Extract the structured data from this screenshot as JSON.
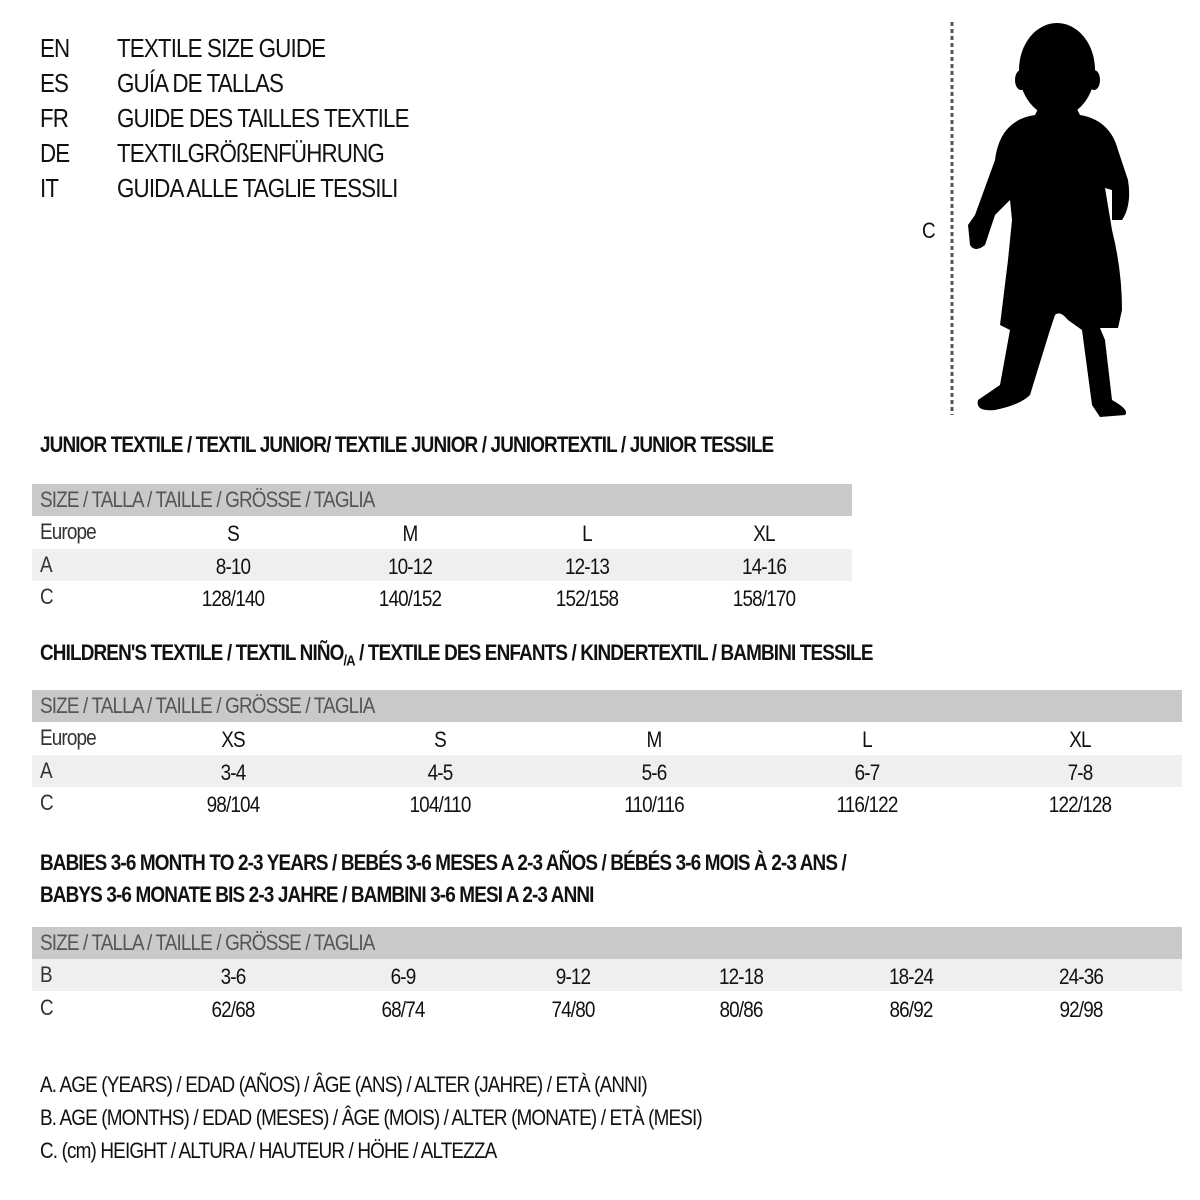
{
  "languages": [
    {
      "code": "EN",
      "title": "TEXTILE SIZE GUIDE"
    },
    {
      "code": "ES",
      "title": "GUÍA DE TALLAS"
    },
    {
      "code": "FR",
      "title": "GUIDE DES TAILLES TEXTILE"
    },
    {
      "code": "DE",
      "title": "TEXTILGRÖßENFÜHRUNG"
    },
    {
      "code": "IT",
      "title": "GUIDA ALLE TAGLIE TESSILI"
    }
  ],
  "figure": {
    "height_label": "C",
    "icon": "child-silhouette"
  },
  "junior": {
    "title": "JUNIOR TEXTILE / TEXTIL JUNIOR/ TEXTILE JUNIOR / JUNIORTEXTIL / JUNIOR TESSILE",
    "header": "SIZE / TALLA / TAILLE / GRÖSSE / TAGLIA",
    "rows": [
      {
        "label": "Europe",
        "values": [
          "S",
          "M",
          "L",
          "XL"
        ]
      },
      {
        "label": "A",
        "values": [
          "8-10",
          "10-12",
          "12-13",
          "14-16"
        ]
      },
      {
        "label": "C",
        "values": [
          "128/140",
          "140/152",
          "152/158",
          "158/170"
        ]
      }
    ]
  },
  "children": {
    "title_main": "CHILDREN'S TEXTILE / TEXTIL NIÑO",
    "title_sub": "/A",
    "title_rest": " / TEXTILE DES ENFANTS / KINDERTEXTIL / BAMBINI TESSILE",
    "header": "SIZE / TALLA / TAILLE / GRÖSSE / TAGLIA",
    "rows": [
      {
        "label": "Europe",
        "values": [
          "XS",
          "S",
          "M",
          "L",
          "XL"
        ]
      },
      {
        "label": "A",
        "values": [
          "3-4",
          "4-5",
          "5-6",
          "6-7",
          "7-8"
        ]
      },
      {
        "label": "C",
        "values": [
          "98/104",
          "104/110",
          "110/116",
          "116/122",
          "122/128"
        ]
      }
    ]
  },
  "babies": {
    "title_line1": "BABIES 3-6 MONTH TO 2-3 YEARS / BEBÉS 3-6 MESES A 2-3 AÑOS / BÉBÉS 3-6 MOIS À 2-3 ANS /",
    "title_line2": "BABYS 3-6 MONATE BIS 2-3 JAHRE / BAMBINI 3-6 MESI A 2-3 ANNI",
    "header": "SIZE / TALLA / TAILLE / GRÖSSE / TAGLIA",
    "rows": [
      {
        "label": "B",
        "values": [
          "3-6",
          "6-9",
          "9-12",
          "12-18",
          "18-24",
          "24-36"
        ]
      },
      {
        "label": "C",
        "values": [
          "62/68",
          "68/74",
          "74/80",
          "80/86",
          "86/92",
          "92/98"
        ]
      }
    ]
  },
  "legend": [
    "A. AGE (YEARS) / EDAD (AÑOS) / ÂGE (ANS) / ALTER (JAHRE) / ETÀ (ANNI)",
    "B. AGE (MONTHS) / EDAD (MESES) / ÂGE (MOIS) / ALTER (MONATE) / ETÀ (MESI)",
    "C. (cm) HEIGHT / ALTURA / HAUTEUR / HÖHE / ALTEZZA"
  ],
  "colors": {
    "header_row": "#c9c9c9",
    "alt_row": "#efefef",
    "text": "#111111"
  }
}
